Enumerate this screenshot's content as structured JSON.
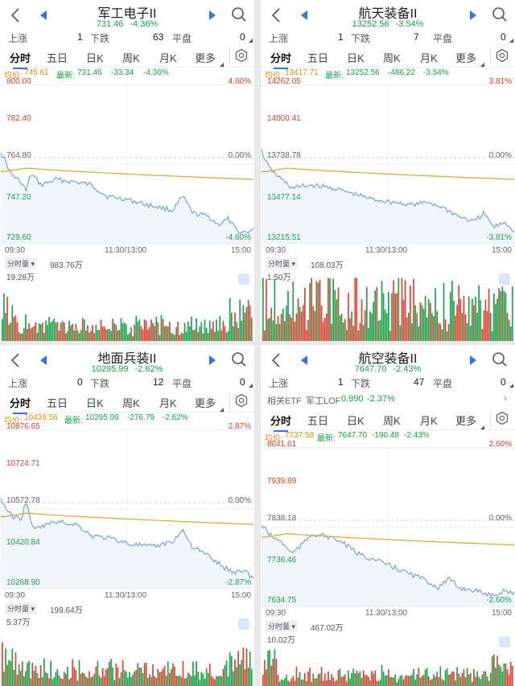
{
  "colors": {
    "up": "#e5402f",
    "down": "#1aa34a",
    "avg": "#e0a430",
    "price": "#6c9ed9",
    "accent": "#3b6ff5"
  },
  "icons": {
    "back": "chevron-left-icon",
    "prev": "triangle-left-icon",
    "next": "triangle-right-icon",
    "search": "search-icon",
    "settings": "gear-icon",
    "zoom": "expand-icon"
  },
  "tabs": [
    "分时",
    "五日",
    "日K",
    "周K",
    "月K",
    "更多"
  ],
  "labels": {
    "rise": "上涨",
    "fall": "下跌",
    "flat": "平盘",
    "avg": "均价:",
    "latest": "最新:",
    "time_start": "09:30",
    "time_mid": "11:30/13:00",
    "time_end": "15:00",
    "volume_btn": "分时量 ▾"
  },
  "panels": [
    {
      "title": "军工电子II",
      "price": "731.46",
      "change_pct": "-4.36%",
      "rise": "1",
      "fall": "63",
      "flat": "0",
      "avg": "745.61",
      "latest": "731.46",
      "chg": "-33.34",
      "chg_pct": "-4.36%",
      "y_labels": [
        "800.00",
        "782.40",
        "764.80",
        "747.20",
        "729.60"
      ],
      "pct_labels": [
        "4.60%",
        "0.00%",
        "-4.60%"
      ],
      "vol_total": "983.76万",
      "vol_max": "19.28万"
    },
    {
      "title": "航天装备II",
      "price": "13252.56",
      "change_pct": "-3.54%",
      "rise": "1",
      "fall": "7",
      "flat": "0",
      "avg": "13417.71",
      "latest": "13252.56",
      "chg": "-486.22",
      "chg_pct": "-3.54%",
      "y_labels": [
        "14262.05",
        "14000.41",
        "13738.78",
        "13477.14",
        "13215.51"
      ],
      "pct_labels": [
        "3.81%",
        "0.00%",
        "-3.81%"
      ],
      "vol_total": "108.03万",
      "vol_max": "1.50万"
    },
    {
      "title": "地面兵装II",
      "price": "10295.99",
      "change_pct": "-2.62%",
      "rise": "0",
      "fall": "12",
      "flat": "0",
      "avg": "10439.56",
      "latest": "10295.99",
      "chg": "-276.79",
      "chg_pct": "-2.62%",
      "y_labels": [
        "10876.65",
        "10724.71",
        "10572.78",
        "10420.84",
        "10268.90"
      ],
      "pct_labels": [
        "2.87%",
        "0.00%",
        "-2.87%"
      ],
      "vol_total": "199.64万",
      "vol_max": "5.37万"
    },
    {
      "title": "航空装备II",
      "price": "7647.70",
      "change_pct": "-2.43%",
      "rise": "1",
      "fall": "47",
      "flat": "0",
      "etf": {
        "label": "相关ETF",
        "name": "军工LOF",
        "price": "0.990",
        "pct": "-2.37%"
      },
      "avg": "7737.58",
      "latest": "7647.70",
      "chg": "-190.48",
      "chg_pct": "-2.43%",
      "y_labels": [
        "8041.61",
        "7939.89",
        "7838.18",
        "7736.46",
        "7634.75"
      ],
      "pct_labels": [
        "2.60%",
        "0.00%",
        "-2.60%"
      ],
      "vol_total": "467.02万",
      "vol_max": "10.02万"
    }
  ]
}
